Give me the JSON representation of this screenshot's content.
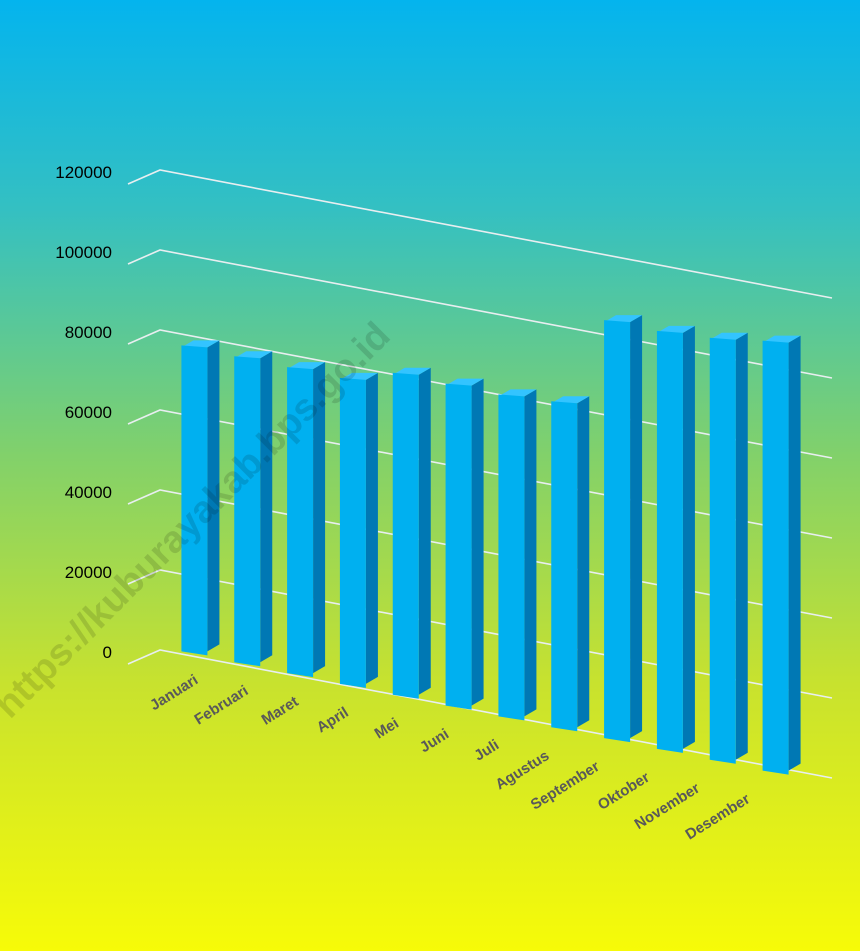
{
  "chart_data": {
    "type": "bar",
    "title": "",
    "xlabel": "",
    "ylabel": "",
    "categories": [
      "Januari",
      "Februari",
      "Maret",
      "April",
      "Mei",
      "Juni",
      "Juli",
      "Agustus",
      "September",
      "Oktober",
      "November",
      "Desember"
    ],
    "values": [
      77000,
      77000,
      77000,
      77000,
      81000,
      81000,
      81000,
      82000,
      105000,
      105000,
      106000,
      108000
    ],
    "ylim": [
      0,
      120000
    ],
    "yticks": [
      "0",
      "20000",
      "40000",
      "60000",
      "80000",
      "100000",
      "120000"
    ],
    "grid": true,
    "legend": "none",
    "three_d": true,
    "colors": {
      "bar_front": "#00b0f0",
      "bar_side": "#0078b4",
      "bar_top": "#33c4ff",
      "gridline": "#e8eef0",
      "tick_label": "#595959"
    }
  },
  "watermark": {
    "text": "https://kuburayakab.bps.go.id"
  }
}
